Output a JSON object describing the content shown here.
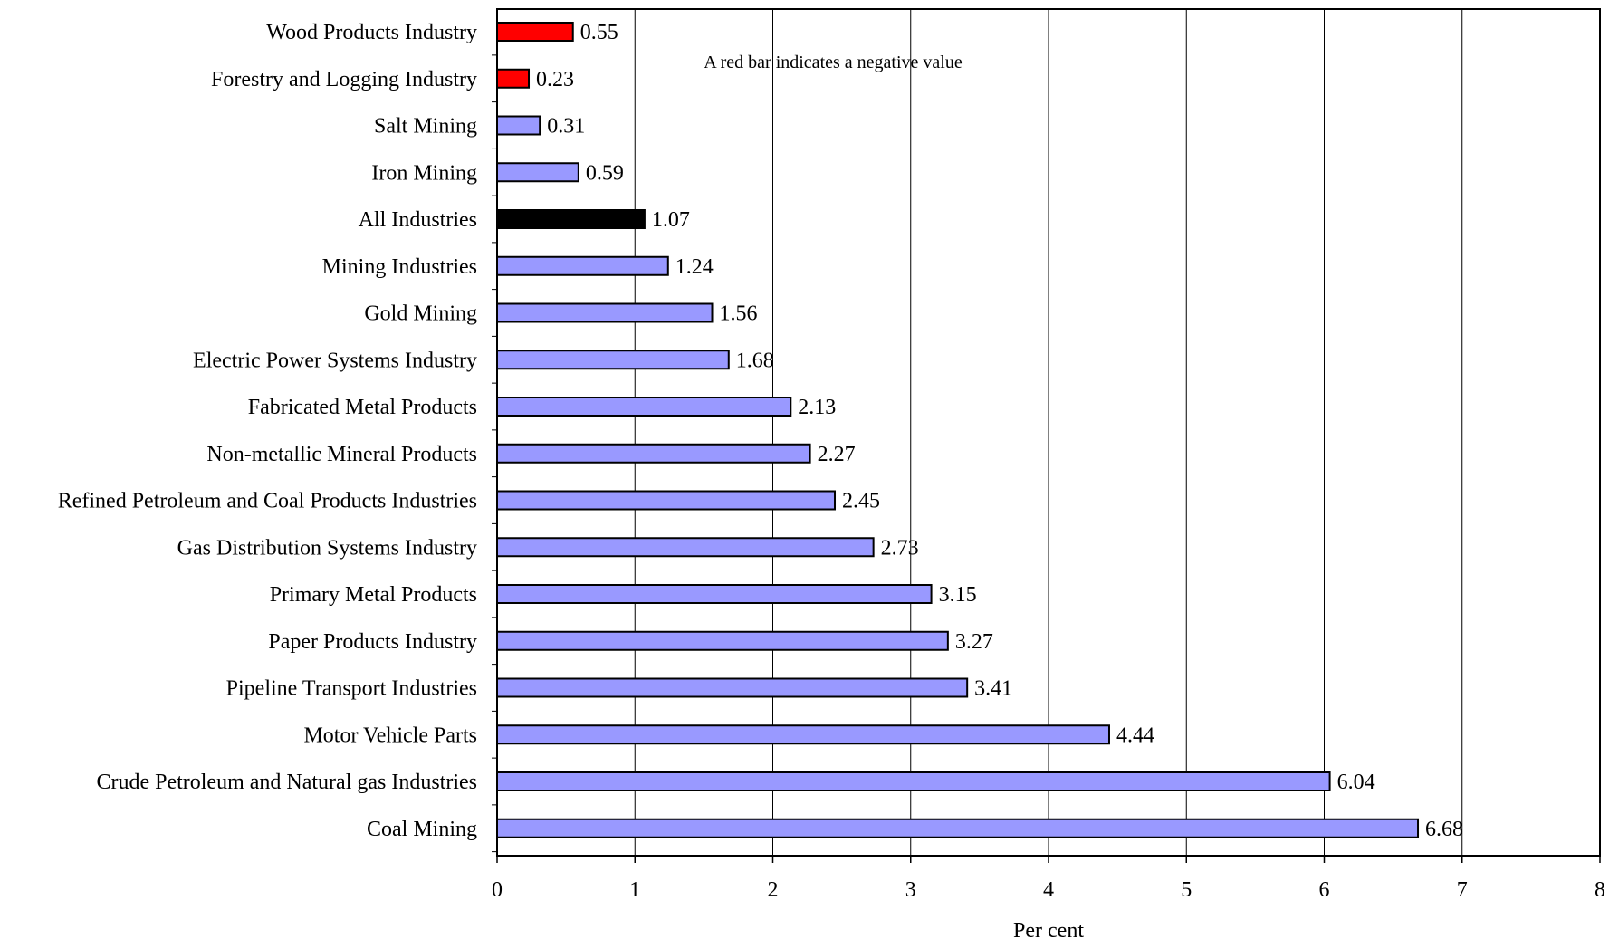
{
  "chart_data": {
    "type": "bar",
    "orientation": "horizontal",
    "categories": [
      "Wood Products Industry",
      "Forestry and Logging Industry",
      "Salt Mining",
      "Iron Mining",
      "All Industries",
      "Mining Industries",
      "Gold Mining",
      "Electric Power Systems Industry",
      "Fabricated Metal Products",
      "Non-metallic Mineral Products",
      "Refined Petroleum and Coal Products Industries",
      "Gas Distribution Systems Industry",
      "Primary Metal Products",
      "Paper Products Industry",
      "Pipeline Transport Industries",
      "Motor Vehicle Parts",
      "Crude Petroleum and Natural gas Industries",
      "Coal Mining"
    ],
    "values": [
      0.55,
      0.23,
      0.31,
      0.59,
      1.07,
      1.24,
      1.56,
      1.68,
      2.13,
      2.27,
      2.45,
      2.73,
      3.15,
      3.27,
      3.41,
      4.44,
      6.04,
      6.68
    ],
    "value_labels": [
      "0.55",
      "0.23",
      "0.31",
      "0.59",
      "1.07",
      "1.24",
      "1.56",
      "1.68",
      "2.13",
      "2.27",
      "2.45",
      "2.73",
      "3.15",
      "3.27",
      "3.41",
      "4.44",
      "6.04",
      "6.68"
    ],
    "bar_colors": [
      "#ff0000",
      "#ff0000",
      "#9999ff",
      "#9999ff",
      "#000000",
      "#9999ff",
      "#9999ff",
      "#9999ff",
      "#9999ff",
      "#9999ff",
      "#9999ff",
      "#9999ff",
      "#9999ff",
      "#9999ff",
      "#9999ff",
      "#9999ff",
      "#9999ff",
      "#9999ff"
    ],
    "xlabel": "Per cent",
    "xlim": [
      0,
      8
    ],
    "xticks": [
      "0",
      "1",
      "2",
      "3",
      "4",
      "5",
      "6",
      "7",
      "8"
    ],
    "grid": "vertical",
    "annotation": "A red bar indicates a negative value",
    "colors": {
      "positive": "#9999ff",
      "negative": "#ff0000",
      "all_industries": "#000000"
    }
  }
}
